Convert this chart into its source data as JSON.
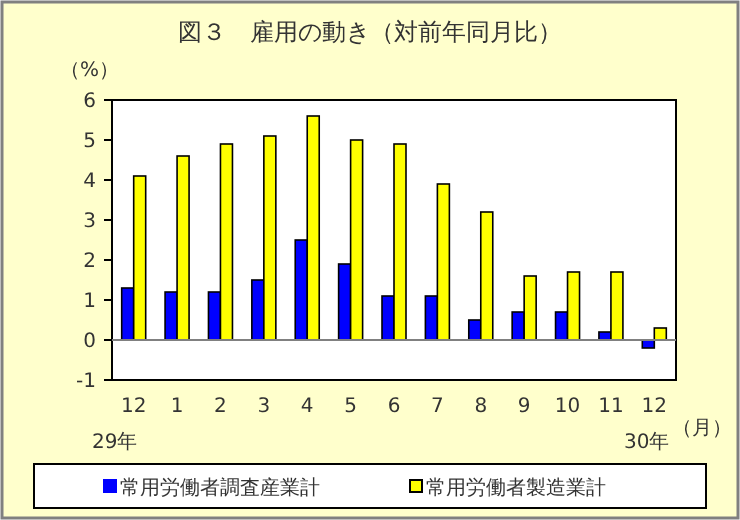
{
  "chart_data": {
    "type": "bar",
    "title": "図３　雇用の動き（対前年同月比）",
    "ylabel": "（%）",
    "xlabel": "（月）",
    "annotations": [
      "29年",
      "30年"
    ],
    "categories": [
      "12",
      "1",
      "2",
      "3",
      "4",
      "5",
      "6",
      "7",
      "8",
      "9",
      "10",
      "11",
      "12"
    ],
    "series": [
      {
        "name": "常用労働者調査産業計",
        "color": "#0000ff",
        "values": [
          1.3,
          1.2,
          1.2,
          1.5,
          2.5,
          1.9,
          1.1,
          1.1,
          0.5,
          0.7,
          0.7,
          0.2,
          -0.2
        ]
      },
      {
        "name": "常用労働者製造業計",
        "color": "#ffff00",
        "values": [
          4.1,
          4.6,
          4.9,
          5.1,
          5.6,
          5.0,
          4.9,
          3.9,
          3.2,
          1.6,
          1.7,
          1.7,
          0.3
        ]
      }
    ],
    "ylim": [
      -1,
      6
    ],
    "yticks": [
      -1,
      0,
      1,
      2,
      3,
      4,
      5,
      6
    ],
    "legend": "bottom"
  }
}
